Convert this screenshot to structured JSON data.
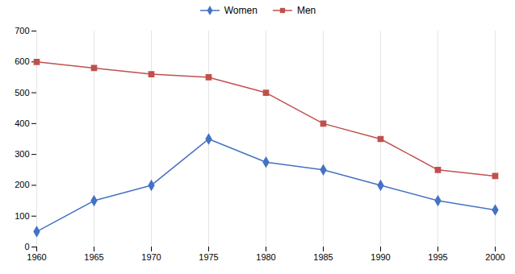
{
  "chart_data": {
    "type": "line",
    "x": [
      1960,
      1965,
      1970,
      1975,
      1980,
      1985,
      1990,
      1995,
      2000
    ],
    "series": [
      {
        "name": "Women",
        "color": "#4472C4",
        "marker": "diamond",
        "values": [
          50,
          150,
          200,
          350,
          275,
          250,
          200,
          150,
          120
        ]
      },
      {
        "name": "Men",
        "color": "#C0504D",
        "marker": "square",
        "values": [
          600,
          580,
          560,
          550,
          500,
          400,
          350,
          250,
          230
        ]
      }
    ],
    "xlim": [
      1960,
      2000
    ],
    "xticks": [
      1960,
      1965,
      1970,
      1975,
      1980,
      1985,
      1990,
      1995,
      2000
    ],
    "ylim": [
      0,
      700
    ],
    "yticks": [
      0,
      100,
      200,
      300,
      400,
      500,
      600,
      700
    ],
    "grid": "x",
    "legend": "top"
  }
}
